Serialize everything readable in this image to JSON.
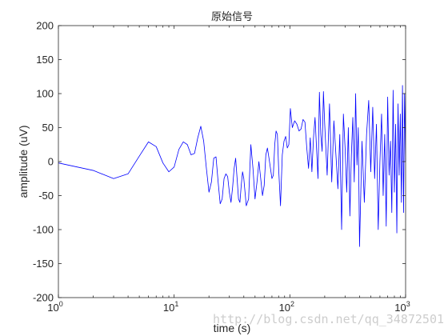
{
  "chart_data": {
    "type": "line",
    "title": "原始信号",
    "xlabel": "time (s)",
    "ylabel": "amplitude (uV)",
    "xscale": "log",
    "xlim": [
      1,
      1000
    ],
    "ylim": [
      -200,
      200
    ],
    "x_ticks": [
      {
        "base": "10",
        "exp": "0"
      },
      {
        "base": "10",
        "exp": "1"
      },
      {
        "base": "10",
        "exp": "2"
      },
      {
        "base": "10",
        "exp": "3"
      }
    ],
    "y_ticks": [
      "200",
      "150",
      "100",
      "50",
      "0",
      "-50",
      "-100",
      "-150",
      "-200"
    ],
    "grid": false,
    "series": [
      {
        "color": "#0000ff",
        "x": [
          1,
          2,
          3,
          4,
          5,
          6,
          7,
          8,
          9,
          10,
          11,
          12,
          13,
          14,
          15,
          16,
          17,
          18,
          19,
          20,
          21,
          22,
          23,
          24,
          25,
          26,
          27,
          28,
          29,
          30,
          31,
          32,
          33,
          34,
          35,
          36,
          37,
          38,
          39,
          40,
          42,
          44,
          46,
          48,
          50,
          52,
          54,
          56,
          58,
          60,
          62,
          64,
          66,
          68,
          70,
          72,
          74,
          76,
          78,
          80,
          83,
          86,
          89,
          92,
          95,
          98,
          101,
          105,
          110,
          115,
          120,
          125,
          130,
          135,
          140,
          145,
          150,
          155,
          160,
          165,
          170,
          175,
          180,
          185,
          190,
          195,
          200,
          210,
          220,
          230,
          240,
          250,
          260,
          270,
          280,
          290,
          300,
          310,
          320,
          330,
          340,
          350,
          360,
          370,
          380,
          390,
          400,
          420,
          440,
          460,
          480,
          500,
          520,
          540,
          560,
          580,
          600,
          620,
          640,
          660,
          680,
          700,
          720,
          740,
          760,
          780,
          800,
          820,
          840,
          860,
          880,
          900,
          920,
          940,
          960,
          980,
          1000
        ],
        "y": [
          -2,
          -13,
          -25,
          -18,
          8,
          29,
          22,
          -2,
          -15,
          -8,
          18,
          29,
          25,
          10,
          12,
          35,
          52,
          30,
          -10,
          -45,
          -30,
          5,
          7,
          -30,
          -62,
          -55,
          -25,
          -18,
          -22,
          -45,
          -60,
          -38,
          -10,
          5,
          -25,
          -55,
          -60,
          -35,
          -15,
          -25,
          -65,
          -55,
          25,
          -10,
          -55,
          -30,
          0,
          -25,
          -50,
          -35,
          10,
          20,
          5,
          -10,
          -25,
          -20,
          25,
          45,
          40,
          -10,
          -65,
          10,
          30,
          37,
          20,
          25,
          78,
          50,
          60,
          55,
          45,
          48,
          62,
          58,
          20,
          -10,
          35,
          -15,
          35,
          65,
          20,
          -25,
          102,
          40,
          15,
          103,
          55,
          -20,
          85,
          -30,
          60,
          10,
          -40,
          40,
          -100,
          70,
          20,
          -45,
          50,
          -80,
          10,
          65,
          -30,
          100,
          -5,
          50,
          -125,
          30,
          -60,
          40,
          90,
          -15,
          80,
          -25,
          55,
          -100,
          0,
          70,
          -50,
          40,
          -95,
          95,
          -20,
          30,
          -75,
          105,
          -45,
          55,
          -105,
          85,
          -20,
          70,
          -60,
          112,
          -75,
          100,
          0
        ]
      }
    ]
  },
  "watermark": "http://blog.csdn.net/qq_34872501"
}
